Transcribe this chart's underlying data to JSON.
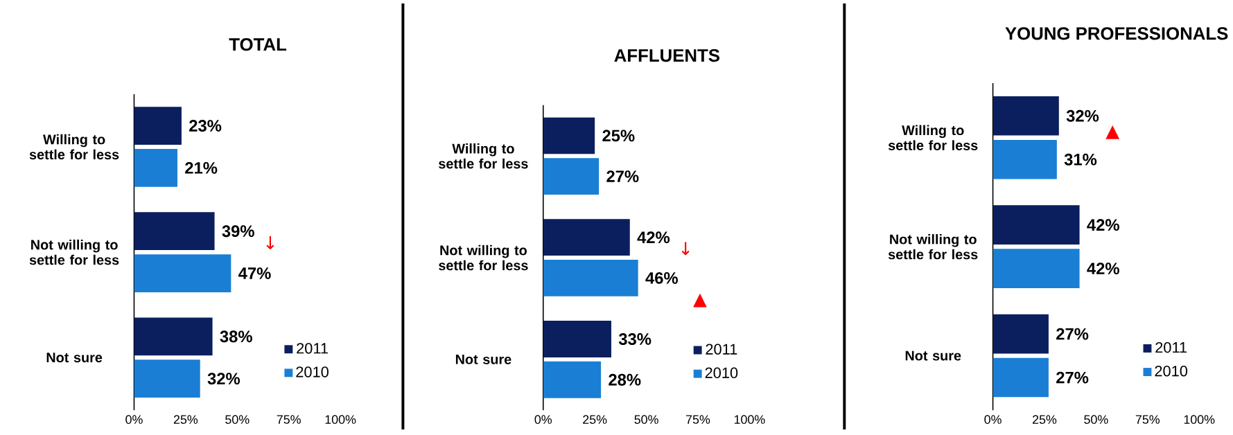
{
  "chart_data": [
    {
      "type": "bar",
      "orientation": "horizontal",
      "title": "TOTAL",
      "categories": [
        "Willing to settle for less",
        "Not willing to settle for less",
        "Not sure"
      ],
      "series": [
        {
          "name": "2011",
          "color": "#0b1f5e",
          "values": [
            23,
            39,
            38
          ],
          "value_labels": [
            "23%",
            "39%",
            "38%"
          ]
        },
        {
          "name": "2010",
          "color": "#1a7fd4",
          "values": [
            21,
            47,
            32
          ],
          "value_labels": [
            "21%",
            "47%",
            "32%"
          ]
        }
      ],
      "xlim": [
        0,
        100
      ],
      "xticks": [
        {
          "value": 0,
          "label": "0%"
        },
        {
          "value": 25,
          "label": "25%"
        },
        {
          "value": 50,
          "label": "50%"
        },
        {
          "value": 75,
          "label": "75%"
        },
        {
          "value": 100,
          "label": "100%"
        }
      ],
      "legend": "bottom right",
      "grid": false,
      "annotations": [
        "↓"
      ]
    },
    {
      "type": "bar",
      "orientation": "horizontal",
      "title": "AFFLUENTS",
      "categories": [
        "Willing to settle for less",
        "Not willing to settle for less",
        "Not sure"
      ],
      "series": [
        {
          "name": "2011",
          "color": "#0b1f5e",
          "values": [
            25,
            42,
            33
          ],
          "value_labels": [
            "25%",
            "42%",
            "33%"
          ]
        },
        {
          "name": "2010",
          "color": "#1a7fd4",
          "values": [
            27,
            46,
            28
          ],
          "value_labels": [
            "27%",
            "46%",
            "28%"
          ]
        }
      ],
      "xlim": [
        0,
        100
      ],
      "xticks": [
        {
          "value": 0,
          "label": "0%"
        },
        {
          "value": 25,
          "label": "25%"
        },
        {
          "value": 50,
          "label": "50%"
        },
        {
          "value": 75,
          "label": "75%"
        },
        {
          "value": 100,
          "label": "100%"
        }
      ],
      "legend": "bottom right",
      "grid": false,
      "annotations": [
        "↓",
        "▲"
      ]
    },
    {
      "type": "bar",
      "orientation": "horizontal",
      "title": "YOUNG PROFESSIONALS",
      "categories": [
        "Willing to settle for less",
        "Not willing to settle for less",
        "Not sure"
      ],
      "series": [
        {
          "name": "2011",
          "color": "#0b1f5e",
          "values": [
            32,
            42,
            27
          ],
          "value_labels": [
            "32%",
            "42%",
            "27%"
          ]
        },
        {
          "name": "2010",
          "color": "#1a7fd4",
          "values": [
            31,
            42,
            27
          ],
          "value_labels": [
            "31%",
            "42%",
            "27%"
          ]
        }
      ],
      "xlim": [
        0,
        100
      ],
      "xticks": [
        {
          "value": 0,
          "label": "0%"
        },
        {
          "value": 25,
          "label": "25%"
        },
        {
          "value": 50,
          "label": "50%"
        },
        {
          "value": 75,
          "label": "75%"
        },
        {
          "value": 100,
          "label": "100%"
        }
      ],
      "legend": "bottom right",
      "grid": false,
      "annotations": [
        "▲"
      ]
    }
  ]
}
